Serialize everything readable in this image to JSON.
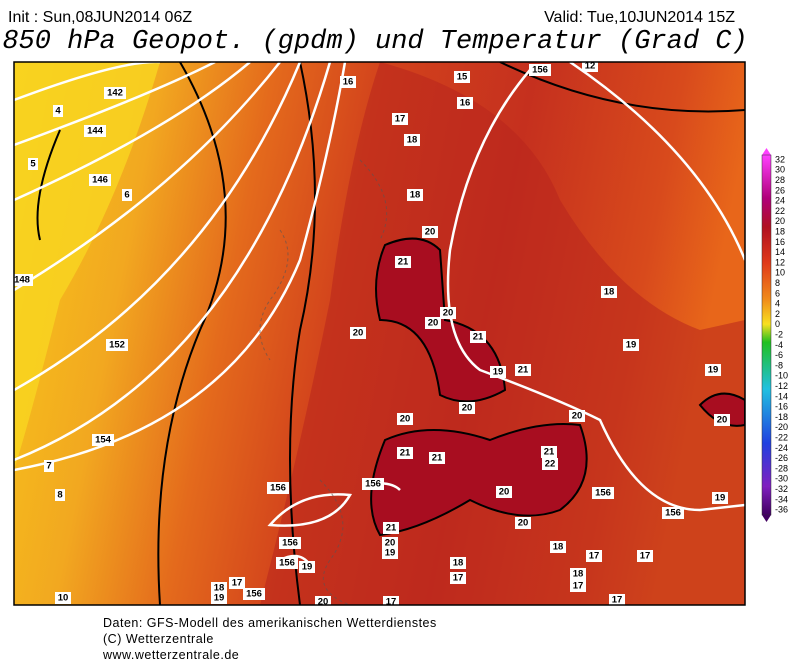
{
  "header": {
    "init": "Init : Sun,08JUN2014 06Z",
    "valid": "Valid: Tue,10JUN2014 15Z",
    "title": "850 hPa Geopot. (gpdm) und Temperatur (Grad C)"
  },
  "colorbar": {
    "labels": [
      "32",
      "30",
      "28",
      "26",
      "24",
      "22",
      "20",
      "18",
      "16",
      "14",
      "12",
      "10",
      "8",
      "6",
      "4",
      "2",
      "0",
      "-2",
      "-4",
      "-6",
      "-8",
      "-10",
      "-12",
      "-14",
      "-16",
      "-18",
      "-20",
      "-22",
      "-24",
      "-26",
      "-28",
      "-30",
      "-32",
      "-34",
      "-36"
    ]
  },
  "map": {
    "labels": [
      "142",
      "144",
      "146",
      "148",
      "152",
      "154",
      "156",
      "156",
      "156",
      "156",
      "156",
      "156",
      "156",
      "4",
      "5",
      "6",
      "7",
      "8",
      "10",
      "16",
      "15",
      "156",
      "12",
      "16",
      "17",
      "18",
      "18",
      "20",
      "21",
      "20",
      "20",
      "20",
      "21",
      "18",
      "19",
      "19",
      "21",
      "19",
      "20",
      "20",
      "20",
      "20",
      "21",
      "21",
      "21",
      "22",
      "20",
      "20",
      "21",
      "20",
      "19",
      "18",
      "17",
      "18",
      "17",
      "17",
      "19",
      "18",
      "17",
      "17",
      "19",
      "18",
      "19",
      "17",
      "20",
      "17"
    ]
  },
  "footer": {
    "lines": [
      "Daten: GFS-Modell des amerikanischen Wetterdienstes",
      "(C) Wetterzentrale",
      "www.wetterzentrale.de"
    ]
  }
}
